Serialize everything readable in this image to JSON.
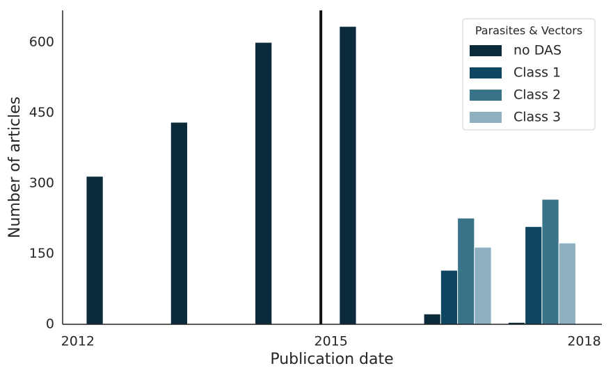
{
  "chart_data": {
    "type": "bar",
    "x_label": "Publication date",
    "y_label": "Number of articles",
    "x": [
      2012,
      2013,
      2014,
      2015,
      2016,
      2017
    ],
    "series": [
      {
        "name": "no DAS",
        "color": "#0b2a3a",
        "values": [
          315,
          430,
          600,
          634,
          22,
          4
        ]
      },
      {
        "name": "Class 1",
        "color": "#0e4560",
        "values": [
          null,
          null,
          null,
          null,
          115,
          208
        ]
      },
      {
        "name": "Class 2",
        "color": "#38738a",
        "values": [
          null,
          null,
          null,
          null,
          226,
          266
        ]
      },
      {
        "name": "Class 3",
        "color": "#8fb0c0",
        "values": [
          null,
          null,
          null,
          null,
          164,
          173
        ]
      }
    ],
    "vline": 2014.88,
    "xlim": [
      2011.82,
      2018.21
    ],
    "xticks": [
      2012,
      2015,
      2018
    ],
    "ylim": [
      0,
      668
    ],
    "yticks": [
      0,
      150,
      300,
      450,
      600
    ],
    "grid": false,
    "legend_title": "Parasites & Vectors",
    "legend_position": "upper-right"
  }
}
